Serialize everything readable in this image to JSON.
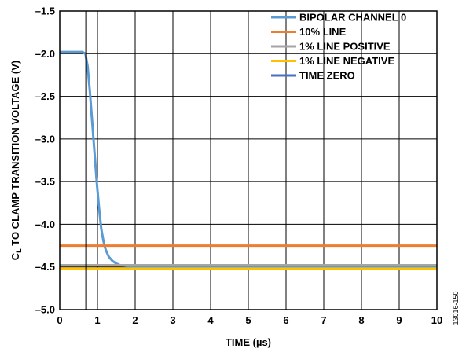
{
  "chart_data": {
    "type": "line",
    "title": "",
    "xlabel": "TIME (µs)",
    "ylabel_main": "C",
    "ylabel_sub": "L",
    "ylabel_rest": " TO CLAMP TRANSITION VOLTAGE (V)",
    "xlim": [
      0,
      10
    ],
    "ylim": [
      -5.0,
      -1.5
    ],
    "x_ticks": [
      0,
      1,
      2,
      3,
      4,
      5,
      6,
      7,
      8,
      9,
      10
    ],
    "x_tick_labels": [
      "0",
      "1",
      "2",
      "3",
      "4",
      "5",
      "6",
      "7",
      "8",
      "9",
      "10"
    ],
    "y_ticks": [
      -1.5,
      -2.0,
      -2.5,
      -3.0,
      -3.5,
      -4.0,
      -4.5,
      -5.0
    ],
    "y_tick_labels": [
      "–1.5",
      "–2.0",
      "–2.5",
      "–3.0",
      "–3.5",
      "–4.0",
      "–4.5",
      "–5.0"
    ],
    "grid": true,
    "legend_position": "top-right",
    "series": [
      {
        "name": "BIPOLAR CHANNEL 0",
        "color": "#5b9bd5",
        "x": [
          0,
          0.3,
          0.6,
          0.68,
          0.74,
          0.8,
          0.86,
          0.92,
          0.98,
          1.04,
          1.1,
          1.16,
          1.22,
          1.3,
          1.4,
          1.5,
          1.6,
          1.8,
          2.2,
          3.0,
          5.0,
          10.0
        ],
        "y": [
          -1.98,
          -1.98,
          -1.98,
          -2.0,
          -2.15,
          -2.45,
          -2.8,
          -3.15,
          -3.5,
          -3.8,
          -4.05,
          -4.2,
          -4.3,
          -4.38,
          -4.43,
          -4.46,
          -4.48,
          -4.49,
          -4.5,
          -4.5,
          -4.5,
          -4.5
        ]
      },
      {
        "name": "10% LINE",
        "color": "#ed7d31",
        "x": [
          0,
          10
        ],
        "y": [
          -4.25,
          -4.25
        ]
      },
      {
        "name": "1% LINE POSITIVE",
        "color": "#a5a5a5",
        "x": [
          0,
          10
        ],
        "y": [
          -4.48,
          -4.48
        ]
      },
      {
        "name": "1% LINE NEGATIVE",
        "color": "#ffc000",
        "x": [
          0,
          10
        ],
        "y": [
          -4.52,
          -4.52
        ]
      },
      {
        "name": "TIME ZERO",
        "color": "#4472c4",
        "x": [
          0.7,
          0.7
        ],
        "y": [
          -5.0,
          -1.5
        ]
      }
    ]
  },
  "figure_id": "13016-150"
}
